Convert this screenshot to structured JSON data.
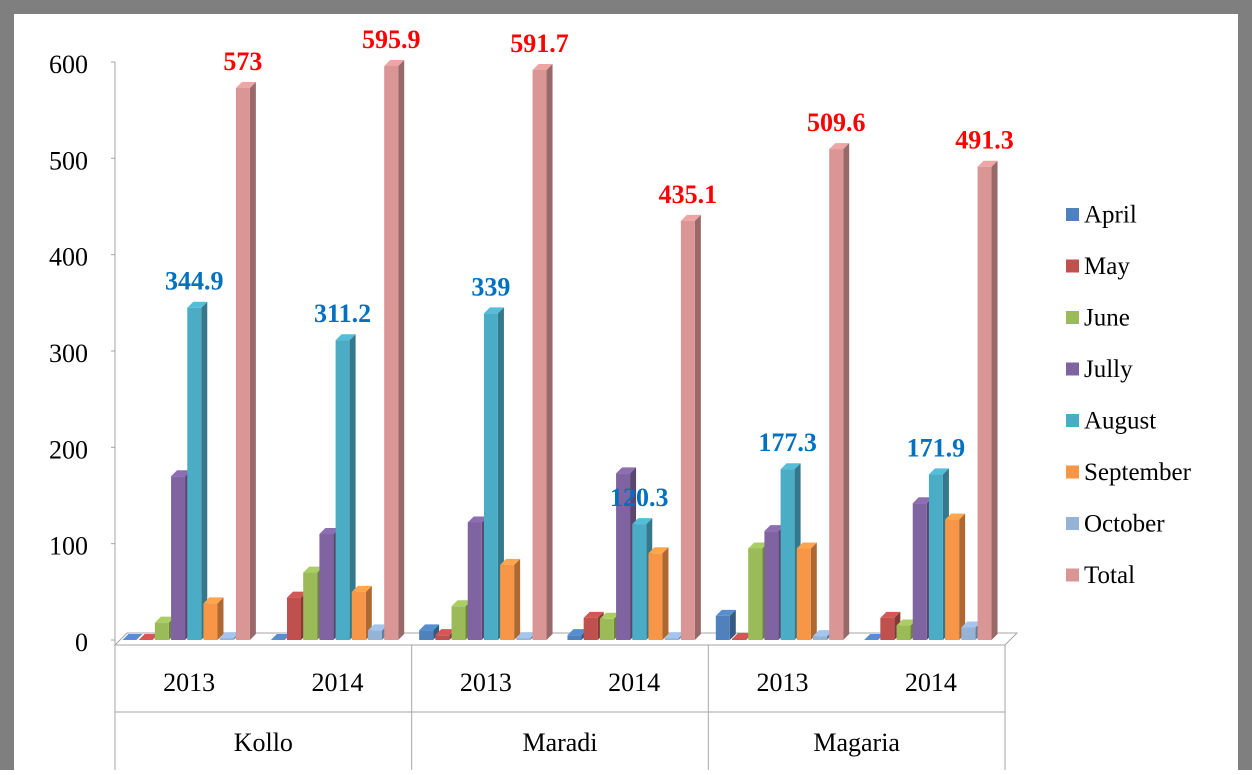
{
  "chart_data": {
    "type": "bar3d",
    "categories": [
      "2013",
      "2014",
      "2013",
      "2014",
      "2013",
      "2014"
    ],
    "group_labels": [
      "Kollo",
      "Maradi",
      "Magaria"
    ],
    "series": [
      {
        "name": "April",
        "color": "#4f81bd",
        "values": [
          0,
          0,
          10,
          5,
          25,
          0
        ]
      },
      {
        "name": "May",
        "color": "#c0504d",
        "values": [
          0,
          44,
          5,
          23,
          1,
          23
        ]
      },
      {
        "name": "June",
        "color": "#9bbb59",
        "values": [
          18,
          70,
          35,
          22,
          95,
          15
        ]
      },
      {
        "name": "Jully",
        "color": "#8064a2",
        "values": [
          170,
          110,
          122,
          173,
          113,
          142
        ]
      },
      {
        "name": "August",
        "color": "#4bacc6",
        "values": [
          344.9,
          311.2,
          339,
          120.3,
          177.3,
          171.9
        ],
        "label_color": "#0070c0"
      },
      {
        "name": "September",
        "color": "#f79646",
        "values": [
          38,
          50,
          78,
          90,
          95,
          125
        ]
      },
      {
        "name": "October",
        "color": "#95b3d7",
        "values": [
          2,
          10,
          2,
          2,
          4,
          13
        ]
      },
      {
        "name": "Total",
        "color": "#d99694",
        "values": [
          573,
          595.9,
          591.7,
          435.1,
          509.6,
          491.3
        ],
        "label_color": "#ff0000"
      }
    ],
    "ylim": [
      0,
      600
    ],
    "yticks": [
      0,
      100,
      200,
      300,
      400,
      500,
      600
    ],
    "grid": false,
    "legend": "right"
  }
}
